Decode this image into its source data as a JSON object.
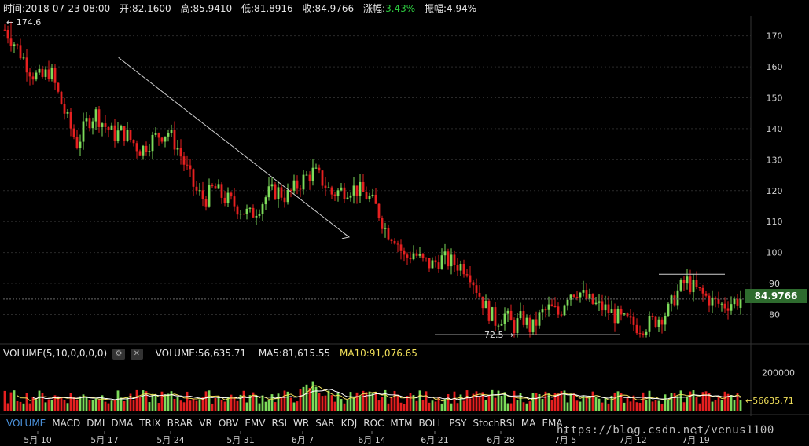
{
  "header": {
    "time": "时间:2018-07-23 08:00",
    "open": "开:82.1600",
    "high": "高:85.9410",
    "low": "低:81.8916",
    "close": "收:84.9766",
    "change_label": "涨幅:",
    "change_value": "3.43%",
    "amplitude": "振幅:4.94%"
  },
  "volume_panel": {
    "indicator": "VOLUME(5,10,0,0,0,0)",
    "volume": "VOLUME:56,635.71",
    "ma5": "MA5:81,615.55",
    "ma10": "MA10:91,076.65",
    "axis_label": "200000",
    "current_label": "←56635.71"
  },
  "price_tag": "84.9766",
  "annotations": {
    "max_label": "← 174.6",
    "min_label": "72.5 →"
  },
  "indicator_tabs": [
    "VOLUME",
    "MACD",
    "DMI",
    "DMA",
    "TRIX",
    "BRAR",
    "VR",
    "OBV",
    "EMV",
    "RSI",
    "WR",
    "SAR",
    "KDJ",
    "ROC",
    "MTM",
    "BOLL",
    "PSY",
    "StochRSI",
    "MA",
    "EMA"
  ],
  "watermark": "https://blog.csdn.net/venus1100",
  "colors": {
    "up": "#7ddb5a",
    "down": "#e62020",
    "background": "#000000",
    "ma5": "#f1e05a",
    "ma10": "#ffffff"
  },
  "chart_data": {
    "type": "candlestick",
    "y_ticks": [
      80,
      90,
      100,
      110,
      120,
      130,
      140,
      150,
      160,
      170
    ],
    "ylim": [
      72,
      176
    ],
    "x_ticks": [
      "5月 10",
      "5月 17",
      "5月 24",
      "5月 31",
      "6月 7",
      "6月 14",
      "6月 21",
      "6月 28",
      "7月 5",
      "7月 12",
      "7月 19"
    ],
    "close_path": [
      172,
      168,
      163,
      158,
      156,
      159,
      150,
      142,
      135,
      142,
      145,
      141,
      138,
      139,
      136,
      133,
      136,
      138,
      139,
      134,
      127,
      120,
      117,
      121,
      118,
      116,
      114,
      112,
      115,
      119,
      120,
      118,
      121,
      124,
      126,
      123,
      119,
      120,
      121,
      120,
      118,
      114,
      107,
      105,
      98,
      100,
      97,
      96,
      98,
      97,
      96,
      95,
      88,
      82,
      78,
      80,
      76,
      79,
      75,
      80,
      82,
      80,
      87,
      88,
      85,
      83,
      82,
      80,
      78,
      77,
      76,
      77,
      79,
      81,
      87,
      91,
      88,
      86,
      84,
      83,
      84,
      85
    ],
    "trend_line": {
      "from": [
        15.6,
        163
      ],
      "to": [
        46.8,
        105
      ]
    },
    "support_line": 73.5,
    "resistance_line": 93,
    "current_price": 84.9766,
    "high_point": 174.6,
    "low_point": 72.5,
    "volume_ylim": [
      0,
      250000
    ],
    "volume_tick": 200000
  }
}
